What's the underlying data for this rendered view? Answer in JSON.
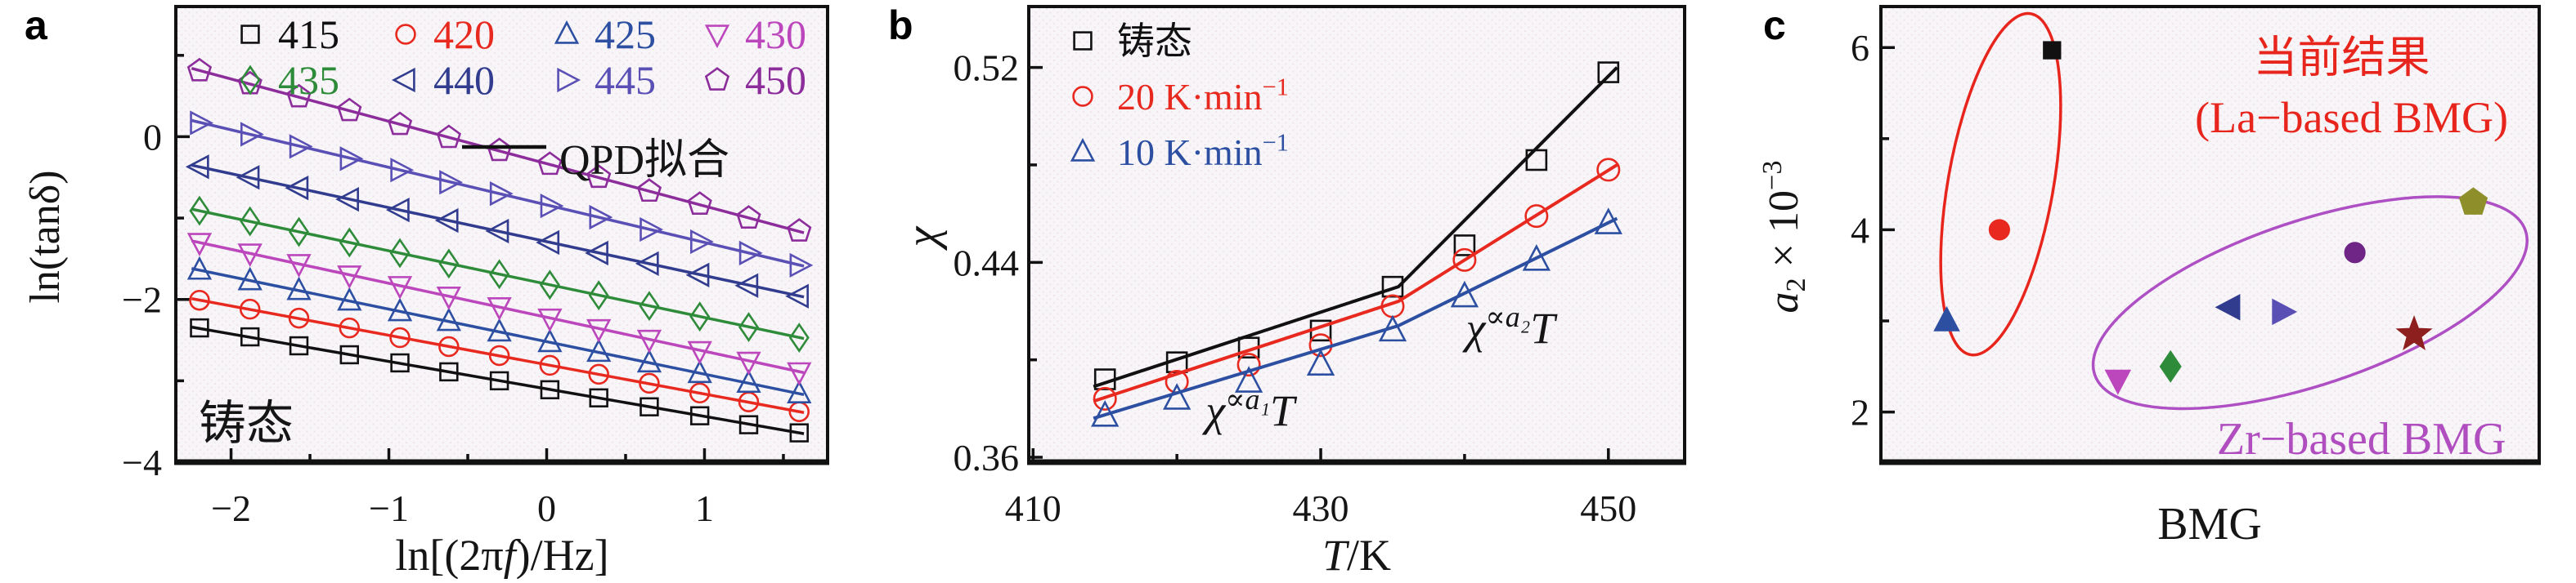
{
  "figure": {
    "panel_labels": [
      "a",
      "b",
      "c"
    ]
  },
  "chart_data": [
    {
      "id": "a",
      "type": "line",
      "xlabel_parts": [
        {
          "t": "ln[(2π"
        },
        {
          "t": "f",
          "i": true
        },
        {
          "t": ")/Hz]"
        }
      ],
      "ylabel_parts": [
        {
          "t": "ln(tanδ)"
        }
      ],
      "corner_text": "铸态",
      "xlim": [
        -2.35,
        1.78
      ],
      "ylim": [
        -4,
        1.6
      ],
      "x_ticks": {
        "major": [
          -2,
          -1,
          0,
          1
        ],
        "minor": [
          -1.5,
          -0.5,
          0.5,
          1.5
        ],
        "labels": [
          "−2",
          "−1",
          "0",
          "1"
        ]
      },
      "y_ticks": {
        "major": [
          0,
          -2,
          -4
        ],
        "minor": [
          1,
          -1,
          -3
        ],
        "labels": [
          "0",
          "−2",
          "−4"
        ]
      },
      "legend": {
        "rows": [
          [
            "415",
            "420",
            "425",
            "430"
          ],
          [
            "435",
            "440",
            "445",
            "450"
          ]
        ],
        "line_label": "QPD拟合"
      },
      "x": [
        -2.2,
        -1.88,
        -1.57,
        -1.25,
        -0.93,
        -0.62,
        -0.3,
        0.02,
        0.33,
        0.65,
        0.97,
        1.28,
        1.6
      ],
      "series": [
        {
          "name": "415",
          "color": "#111111",
          "marker": "square",
          "y": [
            -2.35,
            -2.46,
            -2.57,
            -2.68,
            -2.78,
            -2.89,
            -3.0,
            -3.11,
            -3.21,
            -3.32,
            -3.43,
            -3.54,
            -3.64
          ],
          "fit_x": [
            -2.25,
            1.63
          ],
          "fit_y": [
            -2.34,
            -3.65
          ]
        },
        {
          "name": "420",
          "color": "#e8291f",
          "marker": "circle",
          "y": [
            -2.01,
            -2.12,
            -2.23,
            -2.35,
            -2.47,
            -2.58,
            -2.69,
            -2.81,
            -2.92,
            -3.03,
            -3.15,
            -3.26,
            -3.38
          ],
          "fit_x": [
            -2.25,
            1.63
          ],
          "fit_y": [
            -1.99,
            -3.39
          ]
        },
        {
          "name": "425",
          "color": "#2d4fa2",
          "marker": "triangle-up",
          "y": [
            -1.64,
            -1.77,
            -1.89,
            -2.02,
            -2.15,
            -2.27,
            -2.4,
            -2.53,
            -2.65,
            -2.78,
            -2.91,
            -3.03,
            -3.16
          ],
          "fit_x": [
            -2.25,
            1.63
          ],
          "fit_y": [
            -1.62,
            -3.17
          ]
        },
        {
          "name": "430",
          "color": "#bc46bc",
          "marker": "triangle-down",
          "y": [
            -1.3,
            -1.43,
            -1.56,
            -1.7,
            -1.83,
            -1.96,
            -2.09,
            -2.23,
            -2.36,
            -2.49,
            -2.63,
            -2.76,
            -2.89
          ],
          "fit_x": [
            -2.25,
            1.63
          ],
          "fit_y": [
            -1.28,
            -2.9
          ]
        },
        {
          "name": "435",
          "color": "#2e8b3a",
          "marker": "diamond",
          "y": [
            -0.91,
            -1.04,
            -1.17,
            -1.3,
            -1.43,
            -1.56,
            -1.69,
            -1.82,
            -1.95,
            -2.08,
            -2.21,
            -2.34,
            -2.47
          ],
          "fit_x": [
            -2.25,
            1.63
          ],
          "fit_y": [
            -0.89,
            -2.48
          ]
        },
        {
          "name": "440",
          "color": "#323c8f",
          "marker": "triangle-left",
          "y": [
            -0.37,
            -0.5,
            -0.63,
            -0.77,
            -0.9,
            -1.03,
            -1.16,
            -1.3,
            -1.43,
            -1.56,
            -1.7,
            -1.83,
            -1.96
          ],
          "fit_x": [
            -2.25,
            1.63
          ],
          "fit_y": [
            -0.35,
            -1.97
          ]
        },
        {
          "name": "445",
          "color": "#5a4fb5",
          "marker": "triangle-right",
          "y": [
            0.17,
            0.03,
            -0.12,
            -0.27,
            -0.41,
            -0.56,
            -0.7,
            -0.85,
            -0.99,
            -1.14,
            -1.29,
            -1.43,
            -1.58
          ],
          "fit_x": [
            -2.25,
            1.63
          ],
          "fit_y": [
            0.2,
            -1.59
          ]
        },
        {
          "name": "450",
          "color": "#8c2d9b",
          "marker": "pentagon",
          "y": [
            0.81,
            0.65,
            0.49,
            0.32,
            0.15,
            -0.01,
            -0.17,
            -0.34,
            -0.5,
            -0.67,
            -0.83,
            -1.0,
            -1.16
          ],
          "fit_x": [
            -2.25,
            1.63
          ],
          "fit_y": [
            0.84,
            -1.18
          ]
        }
      ]
    },
    {
      "id": "b",
      "type": "line",
      "xlabel_parts": [
        {
          "t": "T",
          "i": true
        },
        {
          "t": "/K"
        }
      ],
      "ylabel_parts": [
        {
          "t": "χ",
          "i": true
        }
      ],
      "xlim": [
        409.7,
        455.3
      ],
      "ylim": [
        0.358,
        0.545
      ],
      "x_ticks": {
        "major": [
          410,
          430,
          450
        ],
        "minor": [
          420,
          440
        ],
        "labels": [
          "410",
          "430",
          "450"
        ]
      },
      "y_ticks": {
        "major": [
          0.36,
          0.44,
          0.52
        ],
        "minor": [
          0.4,
          0.48
        ],
        "labels": [
          "0.36",
          "0.44",
          "0.52"
        ]
      },
      "x": [
        415,
        420,
        425,
        430,
        435,
        440,
        445,
        450
      ],
      "series": [
        {
          "name": "as-cast",
          "name_parts": [
            {
              "t": "铸态"
            }
          ],
          "color": "#111111",
          "marker": "square",
          "points": [
            0.392,
            0.399,
            0.405,
            0.412,
            0.43,
            0.447,
            0.482,
            0.518
          ],
          "fit_x": [
            414.2,
            435.4,
            450.6
          ],
          "fit_y": [
            0.389,
            0.43,
            0.52
          ]
        },
        {
          "name": "20K-min",
          "name_parts": [
            {
              "t": "20 K·min"
            },
            {
              "t": "−1",
              "sup": true
            }
          ],
          "color": "#e8291f",
          "marker": "circle",
          "points": [
            0.384,
            0.391,
            0.398,
            0.406,
            0.422,
            0.441,
            0.459,
            0.478
          ],
          "fit_x": [
            414.2,
            435.4,
            450.6
          ],
          "fit_y": [
            0.383,
            0.424,
            0.48
          ]
        },
        {
          "name": "10K-min",
          "name_parts": [
            {
              "t": "10 K·min"
            },
            {
              "t": "−1",
              "sup": true
            }
          ],
          "color": "#2d4fa2",
          "marker": "triangle-up",
          "points": [
            0.377,
            0.384,
            0.391,
            0.398,
            0.412,
            0.426,
            0.441,
            0.456
          ],
          "fit_x": [
            414.2,
            435.4,
            450.6
          ],
          "fit_y": [
            0.376,
            0.414,
            0.458
          ]
        }
      ],
      "annotations": [
        {
          "base": "χ",
          "sup": "∝a₁",
          "tail": "T",
          "x": 422.0,
          "y": 0.373
        },
        {
          "base": "χ",
          "sup": "∝a₂",
          "tail": "T",
          "x": 440.1,
          "y": 0.407
        }
      ]
    },
    {
      "id": "c",
      "type": "scatter",
      "xlabel_parts": [
        {
          "t": "BMG"
        }
      ],
      "ylabel_parts": [
        {
          "t": "a",
          "i": true
        },
        {
          "t": "2",
          "sub": true
        },
        {
          "t": " × 10"
        },
        {
          "t": "−3",
          "sup": true
        }
      ],
      "xlim": [
        0,
        10
      ],
      "ylim": [
        1.45,
        6.45
      ],
      "y_ticks": {
        "major": [
          2,
          4,
          6
        ],
        "minor": [
          3,
          5
        ],
        "labels": [
          "2",
          "4",
          "6"
        ]
      },
      "points": [
        {
          "group": "La-based",
          "x": 2.6,
          "y": 5.97,
          "color": "#111111",
          "marker": "square",
          "size": 26
        },
        {
          "group": "La-based",
          "x": 1.8,
          "y": 4.0,
          "color": "#e8291f",
          "marker": "circle",
          "size": 28
        },
        {
          "group": "La-based",
          "x": 1.0,
          "y": 3.0,
          "color": "#2d4fa2",
          "marker": "triangle-up",
          "size": 30
        },
        {
          "group": "Zr-based",
          "x": 3.6,
          "y": 2.35,
          "color": "#bc46bc",
          "marker": "triangle-down",
          "size": 30
        },
        {
          "group": "Zr-based",
          "x": 4.4,
          "y": 2.5,
          "color": "#2e8b3a",
          "marker": "diamond",
          "size": 30
        },
        {
          "group": "Zr-based",
          "x": 5.3,
          "y": 3.15,
          "color": "#323c8f",
          "marker": "triangle-left",
          "size": 30
        },
        {
          "group": "Zr-based",
          "x": 6.1,
          "y": 3.1,
          "color": "#5a4fb5",
          "marker": "triangle-right",
          "size": 30
        },
        {
          "group": "Zr-based",
          "x": 7.2,
          "y": 3.75,
          "color": "#6f2585",
          "marker": "circle",
          "size": 28
        },
        {
          "group": "Zr-based",
          "x": 8.1,
          "y": 2.85,
          "color": "#8e1f1f",
          "marker": "star",
          "size": 36
        },
        {
          "group": "Zr-based",
          "x": 9.0,
          "y": 4.3,
          "color": "#8e8e2b",
          "marker": "pentagon",
          "size": 32
        }
      ],
      "ellipses": [
        {
          "group": "La-based",
          "color": "#e8251d",
          "cx": 1.82,
          "cy": 4.5,
          "rx_units": 0.8,
          "ry_units": 1.9,
          "rotate_deg": 10
        },
        {
          "group": "Zr-based",
          "color": "#ae4fc4",
          "cx": 6.52,
          "cy": 3.2,
          "rx_units": 3.45,
          "ry_units": 0.9,
          "rotate_deg": -18.5
        }
      ],
      "texts": [
        {
          "text": "当前结果",
          "color": "#e8251d",
          "x": 7.0,
          "y": 5.73,
          "size": 54
        },
        {
          "text": "(La−based BMG)",
          "color": "#e8251d",
          "x": 7.15,
          "y": 5.07,
          "size": 54
        },
        {
          "text": "Zr−based BMG",
          "color": "#b04ec0",
          "x": 7.3,
          "y": 1.54,
          "size": 56
        }
      ]
    }
  ]
}
